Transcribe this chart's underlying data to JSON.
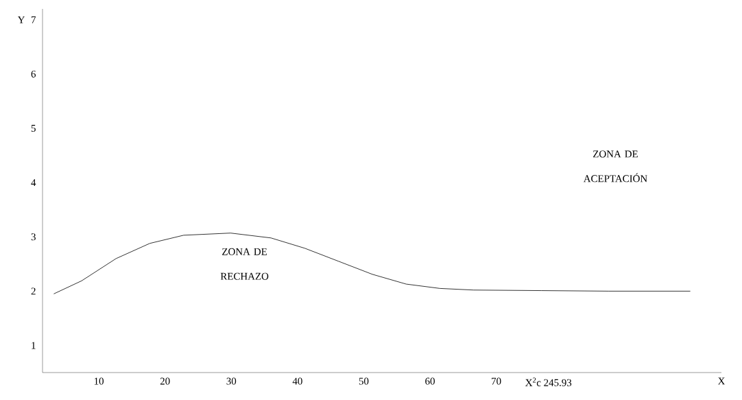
{
  "chart_data": {
    "type": "line",
    "xlabel": "X",
    "ylabel": "Y",
    "x": [
      3.2,
      7.4,
      12.6,
      17.7,
      22.8,
      29.9,
      36,
      41.1,
      46.2,
      51.3,
      56.4,
      61.5,
      66.6,
      76.8,
      87,
      99.3
    ],
    "values": [
      1.95,
      2.19,
      2.6,
      2.88,
      3.03,
      3.07,
      2.98,
      2.79,
      2.55,
      2.31,
      2.13,
      2.05,
      2.02,
      2.01,
      2.0,
      2.0
    ],
    "color": "#000000",
    "xlim": [
      1.5,
      104
    ],
    "xticks": [
      10,
      20,
      30,
      40,
      50,
      60,
      70
    ],
    "ylim": [
      0.5,
      7.2
    ],
    "yticks": [
      1,
      2,
      3,
      4,
      5,
      6,
      7
    ],
    "annotations": [
      "ZONA DE RECHAZO",
      "ZONA DE ACEPTACIÓN",
      "X$^{2}$c  245.93"
    ],
    "grid": false,
    "marker": "none"
  }
}
